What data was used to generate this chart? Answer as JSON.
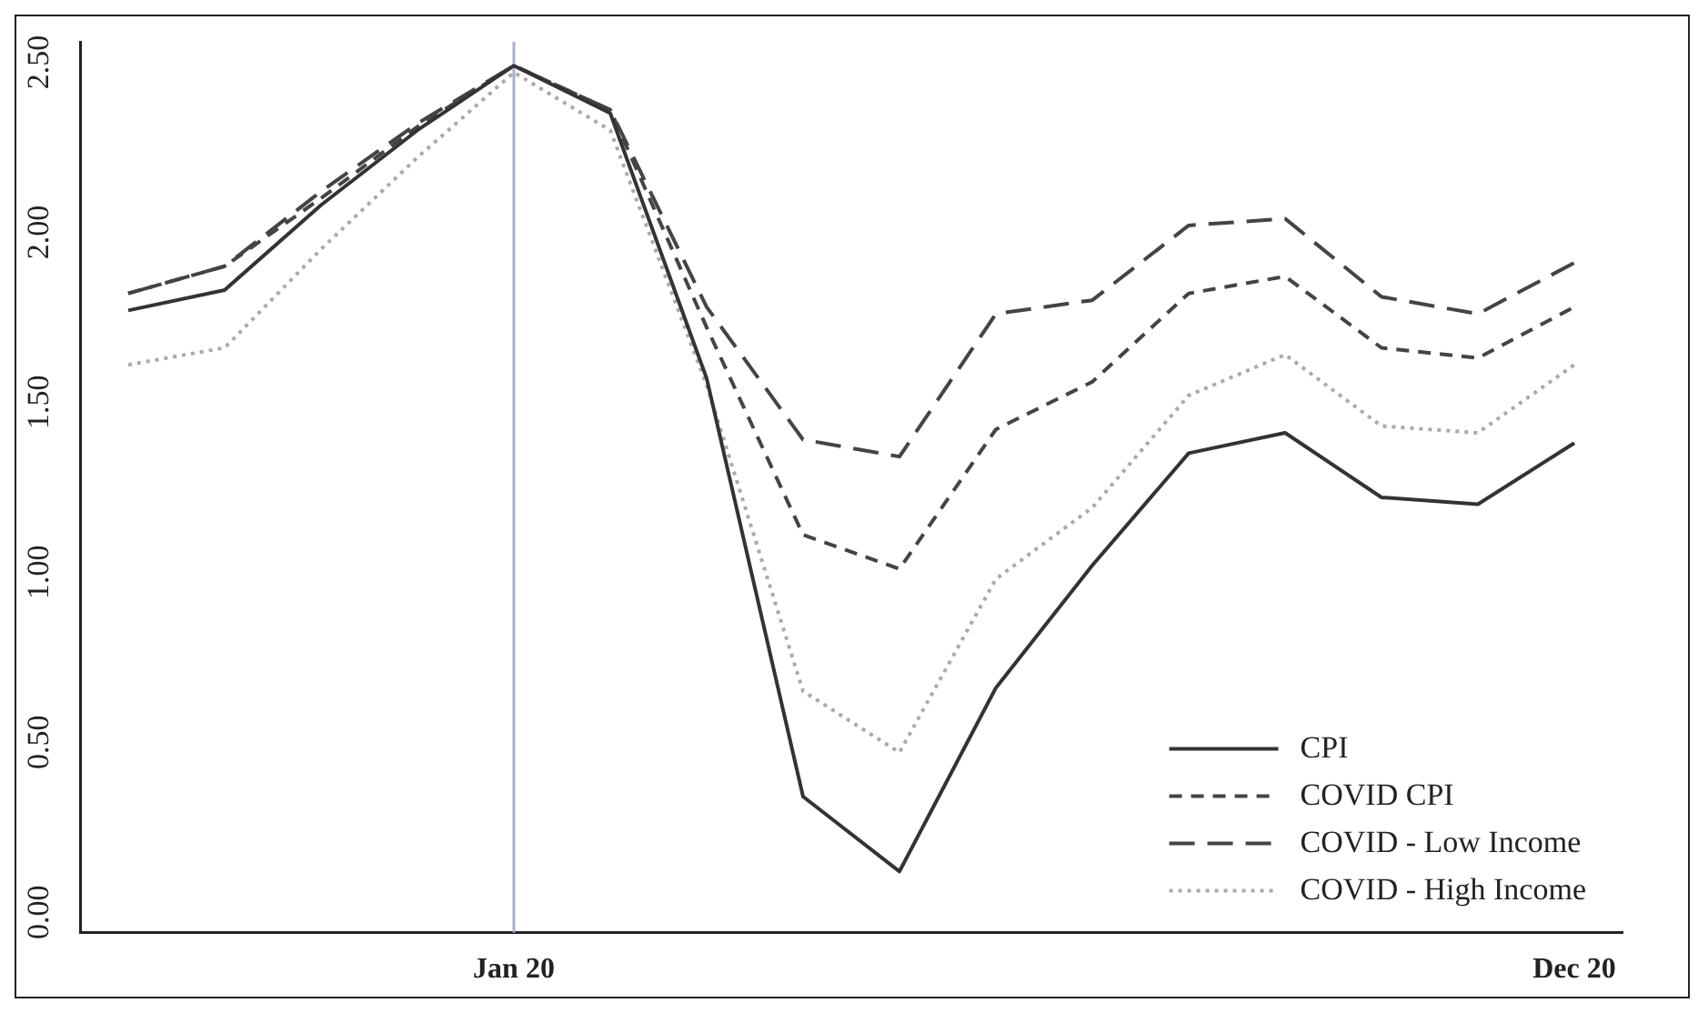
{
  "chart_data": {
    "type": "line",
    "categories": [
      null,
      null,
      null,
      null,
      "Jan 20",
      null,
      null,
      null,
      null,
      null,
      null,
      null,
      null,
      null,
      null,
      "Dec 20"
    ],
    "series": [
      {
        "name": "CPI",
        "color": "#333333",
        "line_style": "solid",
        "values": [
          1.77,
          1.83,
          2.08,
          2.3,
          2.49,
          2.35,
          1.57,
          0.34,
          0.12,
          0.66,
          1.02,
          1.35,
          1.41,
          1.22,
          1.2,
          1.38
        ]
      },
      {
        "name": "COVID CPI",
        "color": "#444444",
        "line_style": "dashed",
        "values": [
          1.82,
          1.9,
          2.1,
          2.31,
          2.49,
          2.36,
          1.72,
          1.11,
          1.01,
          1.42,
          1.56,
          1.82,
          1.87,
          1.66,
          1.63,
          1.78
        ]
      },
      {
        "name": "COVID - Low Income",
        "color": "#444444",
        "line_style": "longdash",
        "values": [
          1.82,
          1.9,
          2.12,
          2.32,
          2.49,
          2.36,
          1.78,
          1.39,
          1.34,
          1.76,
          1.8,
          2.02,
          2.04,
          1.81,
          1.76,
          1.91
        ]
      },
      {
        "name": "COVID - High Income",
        "color": "#aaaaaa",
        "line_style": "dotted",
        "values": [
          1.61,
          1.66,
          1.95,
          2.22,
          2.47,
          2.3,
          1.55,
          0.65,
          0.47,
          0.98,
          1.19,
          1.52,
          1.64,
          1.43,
          1.41,
          1.61
        ]
      }
    ],
    "ylim": [
      -0.06,
      2.56
    ],
    "yticks": [
      {
        "value": 0,
        "label": "0.00"
      },
      {
        "value": 0.5,
        "label": "0.50"
      },
      {
        "value": 1,
        "label": "1.00"
      },
      {
        "value": 1.5,
        "label": "1.50"
      },
      {
        "value": 2,
        "label": "2.00"
      },
      {
        "value": 2.5,
        "label": "2.50"
      }
    ],
    "ref_lines": [
      {
        "axis": "x",
        "value": "Jan 20",
        "color": "#aab0cc"
      }
    ],
    "grid": false,
    "legend": "bottom right",
    "marker": "none"
  }
}
